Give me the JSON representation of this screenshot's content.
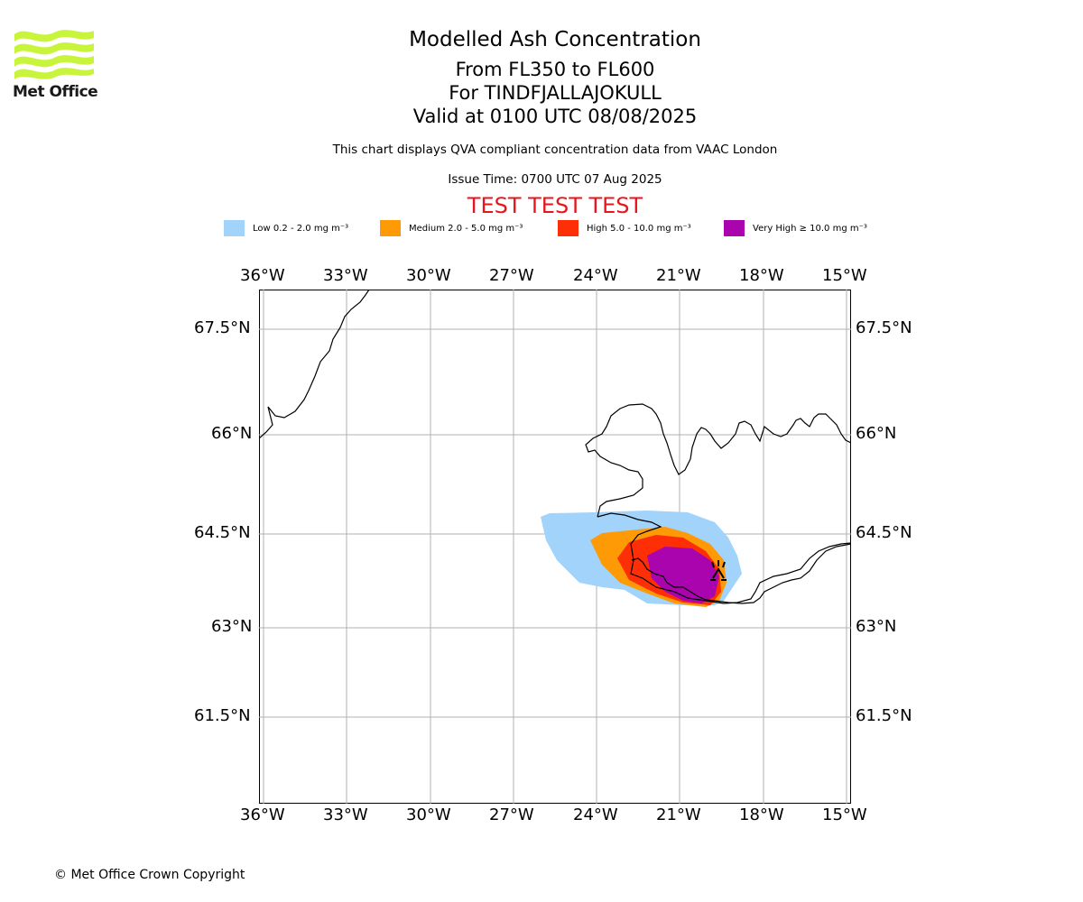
{
  "header": {
    "title": "Modelled Ash Concentration",
    "flight_levels": "From FL350 to FL600",
    "volcano": "For TINDFJALLAJOKULL",
    "valid_time": "Valid at 0100 UTC 08/08/2025",
    "description": "This chart displays QVA compliant concentration data from VAAC London",
    "issue_time": "Issue Time: 0700 UTC 07 Aug 2025",
    "test_banner": "TEST TEST TEST"
  },
  "logo": {
    "text": "Met Office",
    "icon": "met-office-wave-logo",
    "color": "#c8f53c"
  },
  "legend": [
    {
      "label": "Low 0.2 - 2.0 mg m⁻³",
      "color": "#a1d3fb"
    },
    {
      "label": "Medium 2.0 - 5.0 mg m⁻³",
      "color": "#fe9a06"
    },
    {
      "label": "High 5.0 - 10.0 mg m⁻³",
      "color": "#fe2e06"
    },
    {
      "label": "Very High ≥ 10.0 mg m⁻³",
      "color": "#aa04ae"
    }
  ],
  "map": {
    "lon_labels": [
      "36°W",
      "33°W",
      "30°W",
      "27°W",
      "24°W",
      "21°W",
      "18°W",
      "15°W"
    ],
    "lat_labels": [
      "67.5°N",
      "66°N",
      "64.5°N",
      "63°N",
      "61.5°N"
    ],
    "volcano_marker": "volcano-icon",
    "grid": true
  },
  "footer": {
    "copyright": "© Met Office Crown Copyright"
  }
}
